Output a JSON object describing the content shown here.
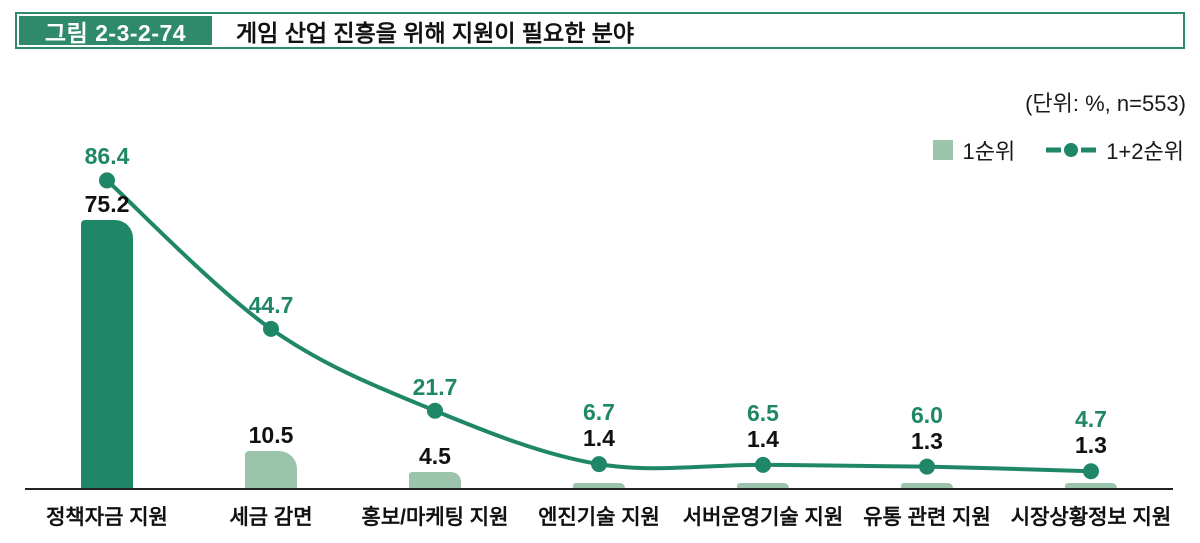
{
  "figure": {
    "label": "그림 2-3-2-74",
    "title": "게임 산업 진흥을 위해 지원이 필요한 분야"
  },
  "unit_note": "(단위: %,  n=553)",
  "legend": [
    {
      "name": "1순위",
      "marker": "square"
    },
    {
      "name": "1+2순위",
      "marker": "line-dot"
    }
  ],
  "colors": {
    "dark_green": "#1f8767",
    "light_green": "#9cc3ab",
    "header_green": "#2e8a6a",
    "axis": "#222222",
    "text": "#111111"
  },
  "chart_data": {
    "type": "bar+line",
    "title": "게임 산업 진흥을 위해 지원이 필요한 분야",
    "categories": [
      "정책자금 지원",
      "세금 감면",
      "홍보/마케팅 지원",
      "엔진기술 지원",
      "서버운영기술 지원",
      "유통 관련 지원",
      "시장상황정보 지원"
    ],
    "series": [
      {
        "name": "1순위",
        "type": "bar",
        "values": [
          75.2,
          10.5,
          4.5,
          1.4,
          1.4,
          1.3,
          1.3
        ],
        "labels": [
          "75.2",
          "10.5",
          "4.5",
          "1.4",
          "1.4",
          "1.3",
          "1.3"
        ]
      },
      {
        "name": "1+2순위",
        "type": "line",
        "values": [
          86.4,
          44.7,
          21.7,
          6.7,
          6.5,
          6.0,
          4.7
        ],
        "labels": [
          "86.4",
          "44.7",
          "21.7",
          "6.7",
          "6.5",
          "6.0",
          "4.7"
        ]
      }
    ],
    "ylim": [
      0,
      90
    ],
    "bar_highlight_index": 0,
    "value_labels": true,
    "grid": false,
    "legend_position": "top-right"
  }
}
